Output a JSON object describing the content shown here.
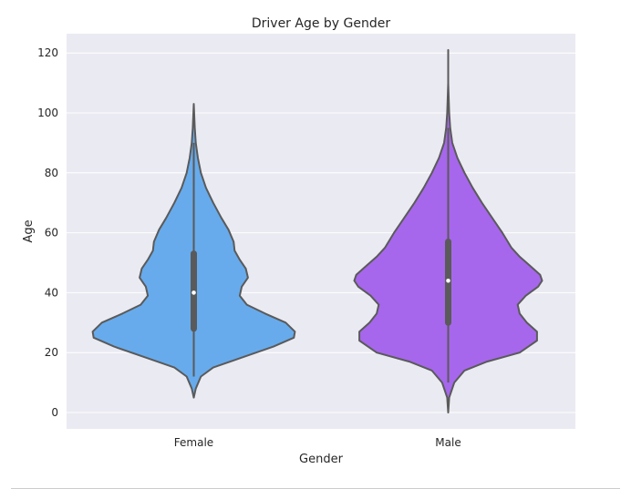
{
  "chart_data": {
    "type": "violin",
    "title": "Driver Age by Gender",
    "xlabel": "Gender",
    "ylabel": "Age",
    "ylim": [
      -5,
      126
    ],
    "yticks": [
      0,
      20,
      40,
      60,
      80,
      100,
      120
    ],
    "grid": true,
    "categories": [
      "Female",
      "Male"
    ],
    "series": [
      {
        "category": "Female",
        "color": "#67abec",
        "min": 5,
        "max": 103,
        "q1": 28,
        "median": 40,
        "q3": 53,
        "whisker_low": 12,
        "whisker_high": 90,
        "density": [
          [
            5,
            0.0
          ],
          [
            8,
            0.02
          ],
          [
            12,
            0.07
          ],
          [
            15,
            0.19
          ],
          [
            18,
            0.44
          ],
          [
            22,
            0.78
          ],
          [
            25,
            0.98
          ],
          [
            27,
            0.99
          ],
          [
            30,
            0.9
          ],
          [
            33,
            0.7
          ],
          [
            36,
            0.52
          ],
          [
            39,
            0.45
          ],
          [
            42,
            0.47
          ],
          [
            45,
            0.53
          ],
          [
            48,
            0.51
          ],
          [
            51,
            0.45
          ],
          [
            54,
            0.4
          ],
          [
            57,
            0.39
          ],
          [
            61,
            0.34
          ],
          [
            65,
            0.27
          ],
          [
            70,
            0.19
          ],
          [
            75,
            0.12
          ],
          [
            80,
            0.07
          ],
          [
            85,
            0.04
          ],
          [
            90,
            0.02
          ],
          [
            95,
            0.01
          ],
          [
            103,
            0.0
          ]
        ]
      },
      {
        "category": "Male",
        "color": "#a667ec",
        "min": 0,
        "max": 121,
        "q1": 30,
        "median": 44,
        "q3": 57,
        "whisker_low": 10,
        "whisker_high": 95,
        "density": [
          [
            0,
            0.0
          ],
          [
            5,
            0.01
          ],
          [
            10,
            0.06
          ],
          [
            14,
            0.16
          ],
          [
            17,
            0.38
          ],
          [
            20,
            0.7
          ],
          [
            24,
            0.87
          ],
          [
            27,
            0.87
          ],
          [
            30,
            0.77
          ],
          [
            33,
            0.7
          ],
          [
            36,
            0.68
          ],
          [
            39,
            0.76
          ],
          [
            42,
            0.88
          ],
          [
            44,
            0.92
          ],
          [
            46,
            0.9
          ],
          [
            49,
            0.8
          ],
          [
            52,
            0.7
          ],
          [
            55,
            0.62
          ],
          [
            60,
            0.53
          ],
          [
            65,
            0.43
          ],
          [
            70,
            0.33
          ],
          [
            75,
            0.24
          ],
          [
            80,
            0.16
          ],
          [
            85,
            0.09
          ],
          [
            90,
            0.04
          ],
          [
            95,
            0.02
          ],
          [
            100,
            0.01
          ],
          [
            110,
            0.0
          ],
          [
            121,
            0.0
          ]
        ]
      }
    ]
  }
}
